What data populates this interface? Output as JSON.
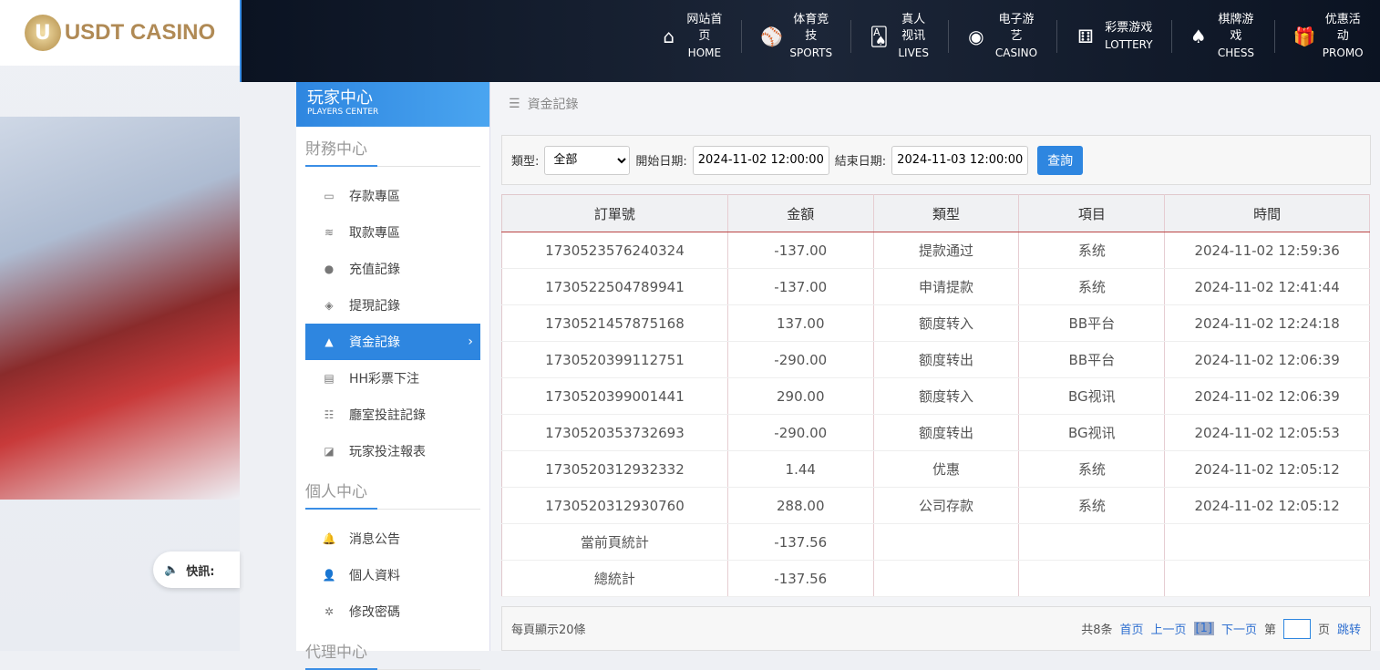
{
  "logo": {
    "text": "USDT CASINO",
    "mark": "U"
  },
  "news": {
    "label": "快訊:"
  },
  "nav": [
    {
      "zh": "网站首页",
      "en": "HOME",
      "icon": "⌂"
    },
    {
      "zh": "体育竞技",
      "en": "SPORTS",
      "icon": "⚾"
    },
    {
      "zh": "真人视讯",
      "en": "LIVES",
      "icon": "🂡"
    },
    {
      "zh": "电子游艺",
      "en": "CASINO",
      "icon": "◉"
    },
    {
      "zh": "彩票游戏",
      "en": "LOTTERY",
      "icon": "⚅"
    },
    {
      "zh": "棋牌游戏",
      "en": "CHESS",
      "icon": "♠"
    },
    {
      "zh": "优惠活动",
      "en": "PROMO",
      "icon": "🎁"
    }
  ],
  "sidebar": {
    "title_zh": "玩家中心",
    "title_en": "PLAYERS CENTER",
    "sections": [
      {
        "title": "財務中心",
        "items": [
          {
            "label": "存款專區",
            "icon": "▭"
          },
          {
            "label": "取款專區",
            "icon": "≋"
          },
          {
            "label": "充值記錄",
            "icon": "●"
          },
          {
            "label": "提現記錄",
            "icon": "◈"
          },
          {
            "label": "資金記錄",
            "icon": "▲",
            "active": true
          },
          {
            "label": "HH彩票下注",
            "icon": "▤"
          },
          {
            "label": "廳室投註記錄",
            "icon": "☷"
          },
          {
            "label": "玩家投注報表",
            "icon": "◪"
          }
        ]
      },
      {
        "title": "個人中心",
        "items": [
          {
            "label": "消息公告",
            "icon": "🔔"
          },
          {
            "label": "個人資料",
            "icon": "👤"
          },
          {
            "label": "修改密碼",
            "icon": "✲"
          }
        ]
      },
      {
        "title": "代理中心",
        "items": []
      }
    ]
  },
  "breadcrumb": "資金記錄",
  "filter": {
    "type_label": "類型:",
    "type_value": "全部",
    "start_label": "開始日期:",
    "start_value": "2024-11-02 12:00:00",
    "end_label": "結束日期:",
    "end_value": "2024-11-03 12:00:00",
    "query": "查詢"
  },
  "table": {
    "headers": [
      "訂單號",
      "金額",
      "類型",
      "項目",
      "時間"
    ],
    "rows": [
      [
        "1730523576240324",
        "-137.00",
        "提款通过",
        "系统",
        "2024-11-02 12:59:36"
      ],
      [
        "1730522504789941",
        "-137.00",
        "申请提款",
        "系统",
        "2024-11-02 12:41:44"
      ],
      [
        "1730521457875168",
        "137.00",
        "额度转入",
        "BB平台",
        "2024-11-02 12:24:18"
      ],
      [
        "1730520399112751",
        "-290.00",
        "额度转出",
        "BB平台",
        "2024-11-02 12:06:39"
      ],
      [
        "1730520399001441",
        "290.00",
        "额度转入",
        "BG视讯",
        "2024-11-02 12:06:39"
      ],
      [
        "1730520353732693",
        "-290.00",
        "额度转出",
        "BG视讯",
        "2024-11-02 12:05:53"
      ],
      [
        "1730520312932332",
        "1.44",
        "优惠",
        "系统",
        "2024-11-02 12:05:12"
      ],
      [
        "1730520312930760",
        "288.00",
        "公司存款",
        "系统",
        "2024-11-02 12:05:12"
      ],
      [
        "當前頁統計",
        "-137.56",
        "",
        "",
        ""
      ],
      [
        "總統計",
        "-137.56",
        "",
        "",
        ""
      ]
    ]
  },
  "pager": {
    "per_page": "每頁顯示20條",
    "total": "共8条",
    "first": "首页",
    "prev": "上一页",
    "current": "[1]",
    "next": "下一页",
    "page_pre": "第",
    "page_post": "页",
    "jump": "跳转"
  }
}
